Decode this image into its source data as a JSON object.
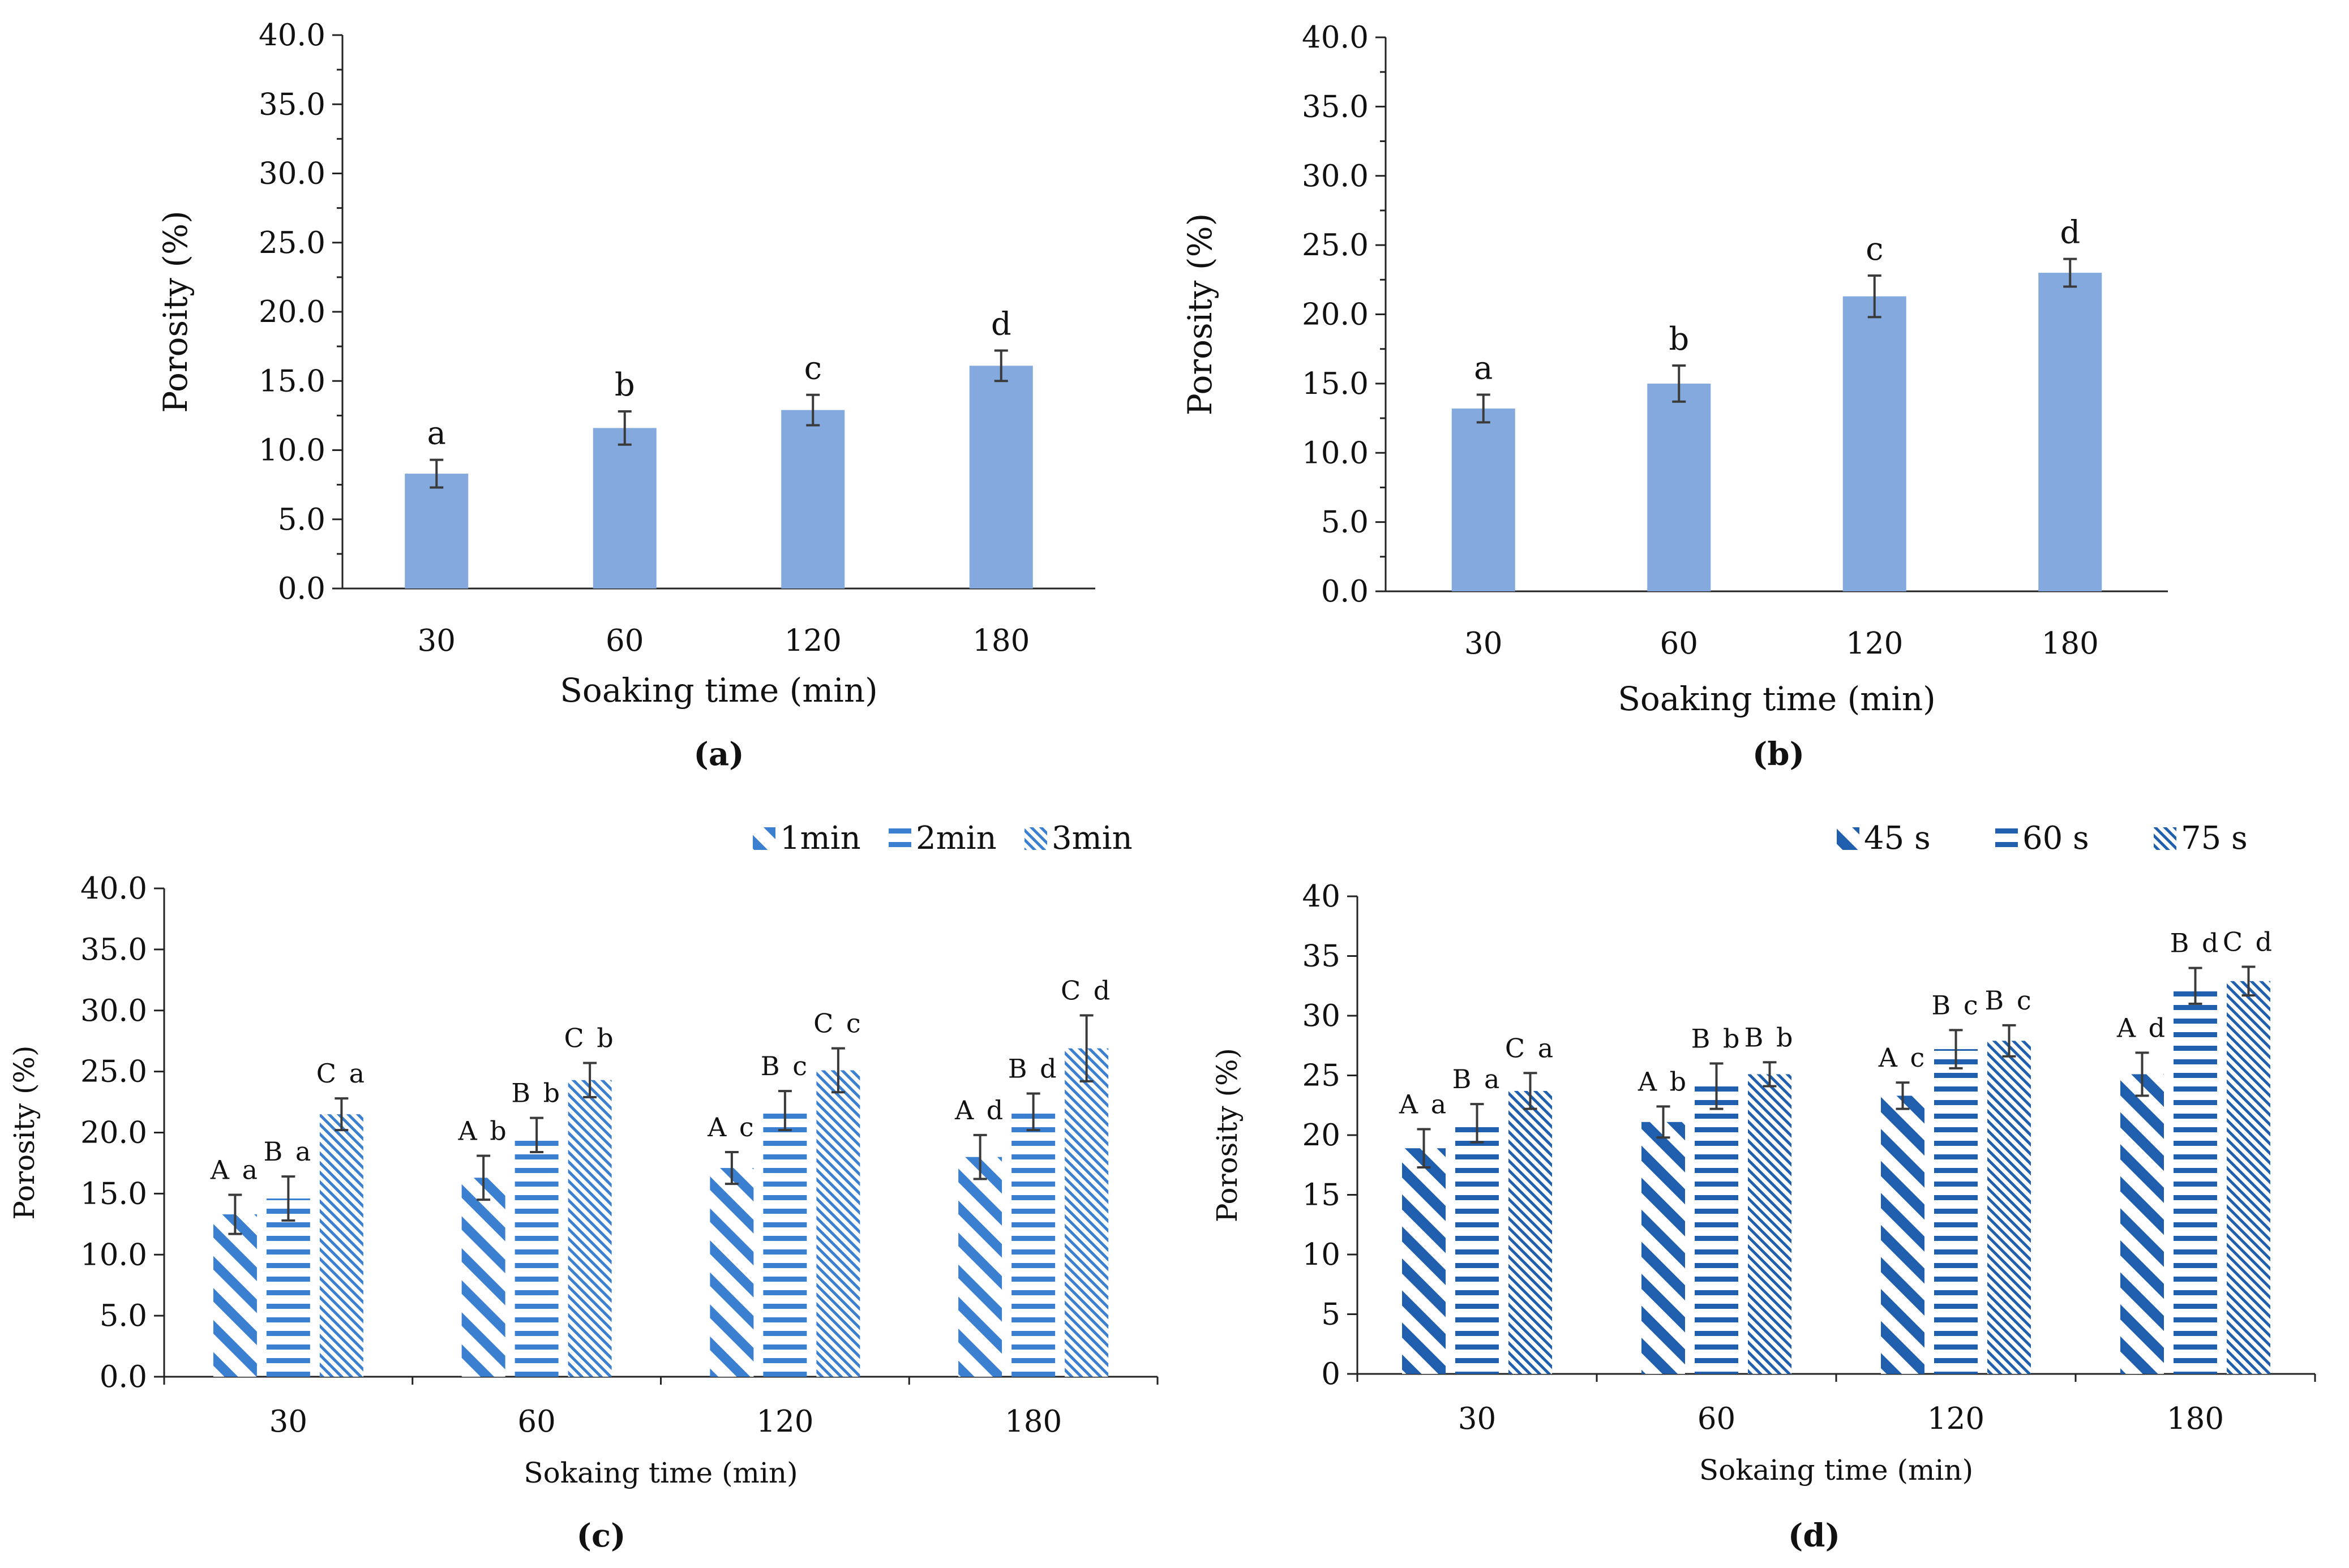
{
  "chart_data": [
    {
      "id": "a",
      "type": "bar",
      "caption": "(a)",
      "xlabel": "Soaking time (min)",
      "ylabel": "Porosity (%)",
      "ylim": [
        0,
        40
      ],
      "yticks": [
        "0.0",
        "5.0",
        "10.0",
        "15.0",
        "20.0",
        "25.0",
        "30.0",
        "35.0",
        "40.0"
      ],
      "categories": [
        "30",
        "60",
        "120",
        "180"
      ],
      "series": [
        {
          "name": "",
          "pattern": "solid",
          "color": "#84A9DF",
          "values": [
            8.3,
            11.6,
            12.9,
            16.1
          ],
          "errors": [
            1.0,
            1.2,
            1.1,
            1.1
          ],
          "labels": [
            "a",
            "b",
            "c",
            "d"
          ]
        }
      ]
    },
    {
      "id": "b",
      "type": "bar",
      "caption": "(b)",
      "xlabel": "Soaking time (min)",
      "ylabel": "Porosity (%)",
      "ylim": [
        0,
        40
      ],
      "yticks": [
        "0.0",
        "5.0",
        "10.0",
        "15.0",
        "20.0",
        "25.0",
        "30.0",
        "35.0",
        "40.0"
      ],
      "categories": [
        "30",
        "60",
        "120",
        "180"
      ],
      "series": [
        {
          "name": "",
          "pattern": "solid",
          "color": "#84A9DF",
          "values": [
            13.2,
            15.0,
            21.3,
            23.0
          ],
          "errors": [
            1.0,
            1.3,
            1.5,
            1.0
          ],
          "labels": [
            "a",
            "b",
            "c",
            "d"
          ]
        }
      ]
    },
    {
      "id": "c",
      "type": "bar",
      "caption": "(c)",
      "xlabel": "Sokaing time (min)",
      "ylabel": "Porosity (%)",
      "ylim": [
        0,
        40
      ],
      "yticks": [
        "0.0",
        "5.0",
        "10.0",
        "15.0",
        "20.0",
        "25.0",
        "30.0",
        "35.0",
        "40.0"
      ],
      "categories": [
        "30",
        "60",
        "120",
        "180"
      ],
      "legend_position": "top-right",
      "series": [
        {
          "name": "1min",
          "pattern": "diag-wide",
          "color": "#3A7FD0",
          "values": [
            13.3,
            16.3,
            17.1,
            18.0
          ],
          "errors": [
            1.6,
            1.8,
            1.3,
            1.8
          ],
          "labels": [
            "A a",
            "A b",
            "A c",
            "A d"
          ]
        },
        {
          "name": "2min",
          "pattern": "horizontal",
          "color": "#3A7FD0",
          "values": [
            14.6,
            19.8,
            21.8,
            21.7
          ],
          "errors": [
            1.8,
            1.4,
            1.6,
            1.5
          ],
          "labels": [
            "B a",
            "B b",
            "B c",
            "B d"
          ]
        },
        {
          "name": "3min",
          "pattern": "diag-fine",
          "color": "#3A7FD0",
          "values": [
            21.5,
            24.3,
            25.1,
            26.9
          ],
          "errors": [
            1.3,
            1.4,
            1.8,
            2.7
          ],
          "labels": [
            "C a",
            "C b",
            "C c",
            "C d"
          ]
        }
      ]
    },
    {
      "id": "d",
      "type": "bar",
      "caption": "(d)",
      "xlabel": "Sokaing time (min)",
      "ylabel": "Porosity (%)",
      "ylim": [
        0,
        40
      ],
      "yticks": [
        "0",
        "5",
        "10",
        "15",
        "20",
        "25",
        "30",
        "35",
        "40"
      ],
      "categories": [
        "30",
        "60",
        "120",
        "180"
      ],
      "legend_position": "top-right",
      "series": [
        {
          "name": "45 s",
          "pattern": "diag-wide",
          "color": "#1F5FAE",
          "values": [
            18.9,
            21.1,
            23.3,
            25.1
          ],
          "errors": [
            1.6,
            1.3,
            1.1,
            1.8
          ],
          "labels": [
            "A a",
            "A b",
            "A c",
            "A d"
          ]
        },
        {
          "name": "60 s",
          "pattern": "horizontal",
          "color": "#1F5FAE",
          "values": [
            21.0,
            24.1,
            27.2,
            32.5
          ],
          "errors": [
            1.6,
            1.9,
            1.6,
            1.5
          ],
          "labels": [
            "B a",
            "B b",
            "B c",
            "B d"
          ]
        },
        {
          "name": "75 s",
          "pattern": "diag-fine",
          "color": "#1F5FAE",
          "values": [
            23.7,
            25.1,
            27.9,
            32.9
          ],
          "errors": [
            1.5,
            1.0,
            1.3,
            1.2
          ],
          "labels": [
            "C a",
            "B b",
            "B c",
            "C d"
          ]
        }
      ]
    }
  ]
}
